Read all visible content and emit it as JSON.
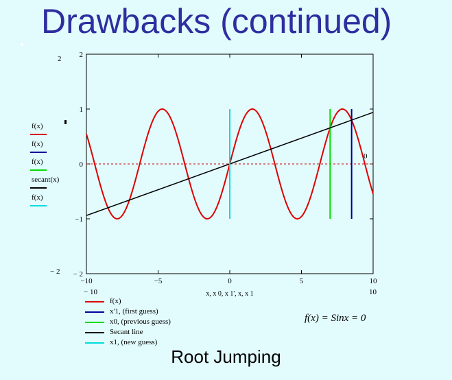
{
  "slide": {
    "title": "Drawbacks (continued)",
    "caption": "Root Jumping",
    "formula": {
      "lhs": "f(x) = ",
      "rhs": "Sinx = 0"
    }
  },
  "chart_data": {
    "type": "line",
    "xlim": [
      -10,
      10
    ],
    "ylim": [
      -2,
      2
    ],
    "outside_labels": {
      "y_top": "2",
      "y_bottom": "− 2",
      "x_left": "− 10",
      "x_right": "10"
    },
    "xticks": [
      -10,
      -5,
      0,
      5,
      10
    ],
    "yticks": [
      -2,
      -1,
      0,
      1,
      2
    ],
    "xtick_labels": [
      "−10",
      "−5",
      "0",
      "5",
      "10"
    ],
    "ytick_labels": [
      "− 2",
      "−1",
      "0",
      "1",
      "2"
    ],
    "xlabel": "x, x 0, x 1', x, x 1",
    "right_label": "0",
    "zero_line": {
      "y": 0,
      "color": "#cc0000",
      "style": "dotted"
    },
    "series": [
      {
        "name": "f(x)",
        "function": "sin",
        "x_min": -10,
        "x_max": 10,
        "color": "#dd0000"
      },
      {
        "name": "x'1, (first guess)",
        "kind": "vline",
        "x": 8.5,
        "y": [
          -1,
          1
        ],
        "color": "#000099"
      },
      {
        "name": "x0, (previous guess)",
        "kind": "vline",
        "x": 7,
        "y": [
          -1,
          1
        ],
        "color": "#00dd00"
      },
      {
        "name": "Secant line",
        "kind": "line",
        "x": [
          -10,
          10
        ],
        "y": [
          -0.94,
          0.94
        ],
        "color": "#000000"
      },
      {
        "name": "x1, (new guess)",
        "kind": "vline",
        "x": 0,
        "y": [
          -1,
          1
        ],
        "color": "#00dddd"
      }
    ],
    "left_legend": [
      {
        "label": "f(x)",
        "color": "#dd0000"
      },
      {
        "label": "f(x)",
        "color": "#000099"
      },
      {
        "label": "f(x)",
        "color": "#00dd00"
      },
      {
        "label": "secant(x)",
        "color": "#000000"
      },
      {
        "label": "f(x)",
        "color": "#00dddd"
      }
    ],
    "bottom_legend": [
      {
        "label": "f(x)",
        "color": "#dd0000"
      },
      {
        "label": "x'1, (first guess)",
        "color": "#000099"
      },
      {
        "label": "x0, (previous guess)",
        "color": "#00dd00"
      },
      {
        "label": "Secant line",
        "color": "#000000"
      },
      {
        "label": "x1, (new guess)",
        "color": "#00dddd"
      }
    ]
  }
}
